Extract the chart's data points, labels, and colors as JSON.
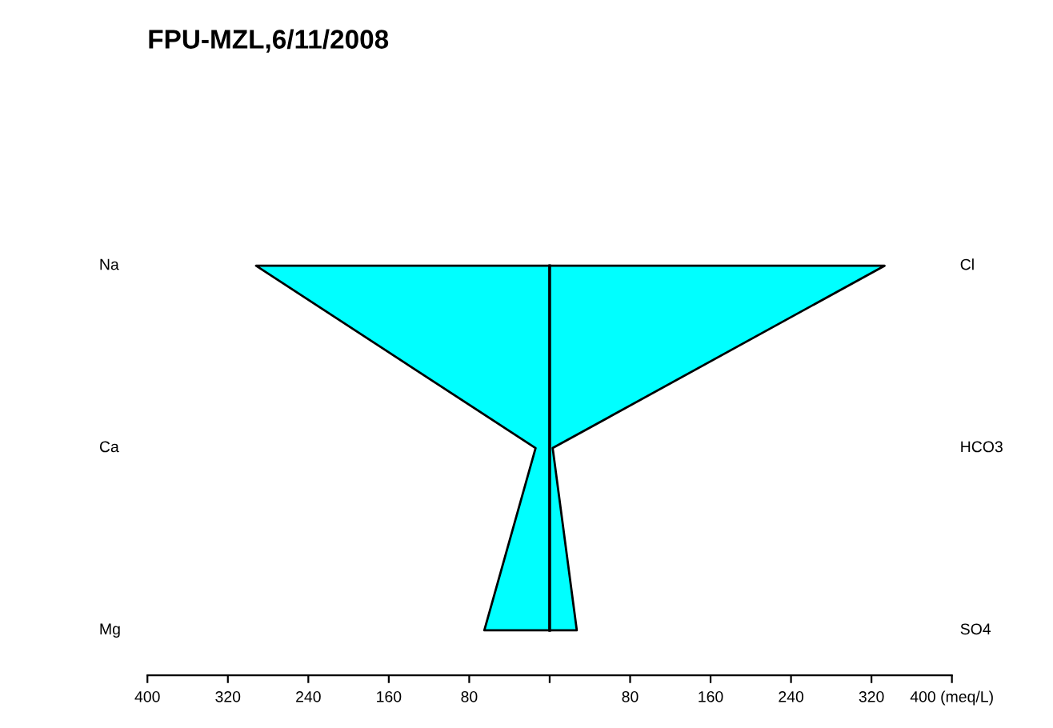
{
  "chart_data": {
    "type": "area",
    "orientation": "horizontal",
    "title": "FPU-MZL,6/11/2008",
    "categories": [
      "Na",
      "Ca",
      "Mg"
    ],
    "y2_categories": [
      "Cl",
      "HCO3",
      "SO4"
    ],
    "series": [
      {
        "color": "#00ffff",
        "values": [
          -292,
          -14,
          -65
        ]
      },
      {
        "color": "#00ffff",
        "values": [
          333,
          3,
          27
        ]
      }
    ],
    "xlim": [
      -400,
      400
    ],
    "xticks": [
      {
        "value": -400,
        "label": "400"
      },
      {
        "value": -320,
        "label": "320"
      },
      {
        "value": -240,
        "label": "240"
      },
      {
        "value": -160,
        "label": "160"
      },
      {
        "value": -80,
        "label": "80"
      },
      {
        "value": 0,
        "label": null
      },
      {
        "value": 80,
        "label": "80"
      },
      {
        "value": 160,
        "label": "160"
      },
      {
        "value": 240,
        "label": "240"
      },
      {
        "value": 320,
        "label": "320"
      },
      {
        "value": 400,
        "label": "400 (meq/L)"
      }
    ],
    "ref_lines": [
      {
        "axis": "x",
        "value": 0,
        "color": "#000000"
      }
    ],
    "grid": false,
    "legend": false
  }
}
